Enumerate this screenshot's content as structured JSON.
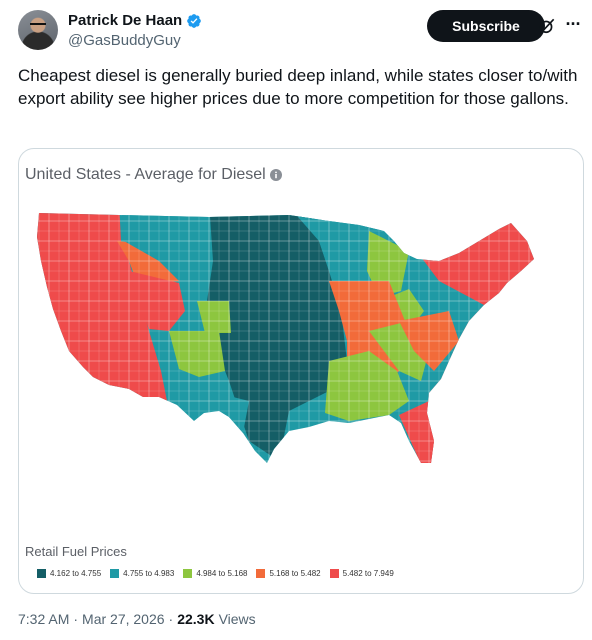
{
  "author": {
    "display_name": "Patrick De Haan",
    "handle": "@GasBuddyGuy",
    "verified": true,
    "avatar_icon": "avatar-photo"
  },
  "actions": {
    "subscribe_label": "Subscribe",
    "grok_icon": "grok-icon",
    "more_icon": "more-icon"
  },
  "tweet": {
    "text": "Cheapest diesel is generally buried deep inland, while states closer to/with export ability see higher prices due to more competition for those gallons."
  },
  "card": {
    "title": "United States - Average for Diesel",
    "legend_title": "Retail Fuel Prices",
    "legend": [
      {
        "label": "4.162 to 4.755",
        "color": "#145e66"
      },
      {
        "label": "4.755 to 4.983",
        "color": "#1f9aa5"
      },
      {
        "label": "4.984 to 5.168",
        "color": "#8dc63f"
      },
      {
        "label": "5.168 to 5.482",
        "color": "#f26b3a"
      },
      {
        "label": "5.482 to 7.949",
        "color": "#ef4b4b"
      }
    ]
  },
  "meta": {
    "time": "7:32 AM",
    "separator1": "·",
    "date": "Mar 27, 2026",
    "separator2": "·",
    "views_count": "22.3K",
    "views_label": "Views"
  }
}
